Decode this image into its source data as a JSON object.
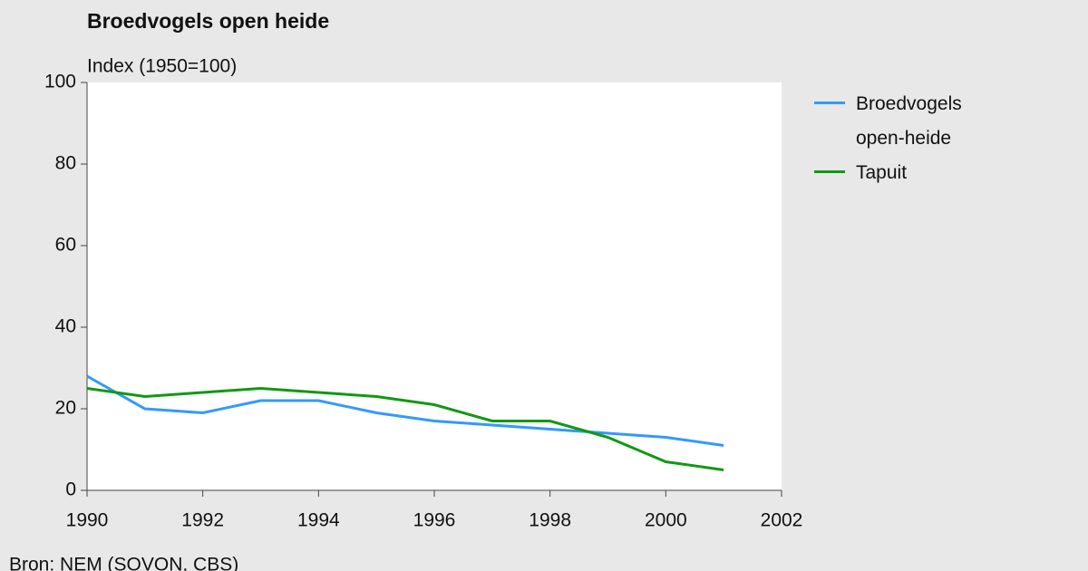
{
  "chart_data": {
    "type": "line",
    "title": "Broedvogels open heide",
    "y_label": "Index (1950=100)",
    "source": "Bron: NEM (SOVON, CBS)",
    "x": [
      1990,
      1991,
      1992,
      1993,
      1994,
      1995,
      1996,
      1997,
      1998,
      1999,
      2000,
      2001
    ],
    "series": [
      {
        "name": "Broedvogels open-heide",
        "color": "#3399ff",
        "values": [
          28,
          20,
          19,
          22,
          22,
          19,
          17,
          16,
          15,
          14,
          13,
          11
        ]
      },
      {
        "name": "Tapuit",
        "color": "#119911",
        "values": [
          25,
          23,
          24,
          25,
          24,
          23,
          21,
          17,
          17,
          13,
          7,
          5
        ]
      }
    ],
    "xlim": [
      1990,
      2002
    ],
    "xticks": [
      1990,
      1992,
      1994,
      1996,
      1998,
      2000,
      2002
    ],
    "ylim": [
      0,
      100
    ],
    "yticks": [
      0,
      20,
      40,
      60,
      80,
      100
    ],
    "legend": "right"
  }
}
